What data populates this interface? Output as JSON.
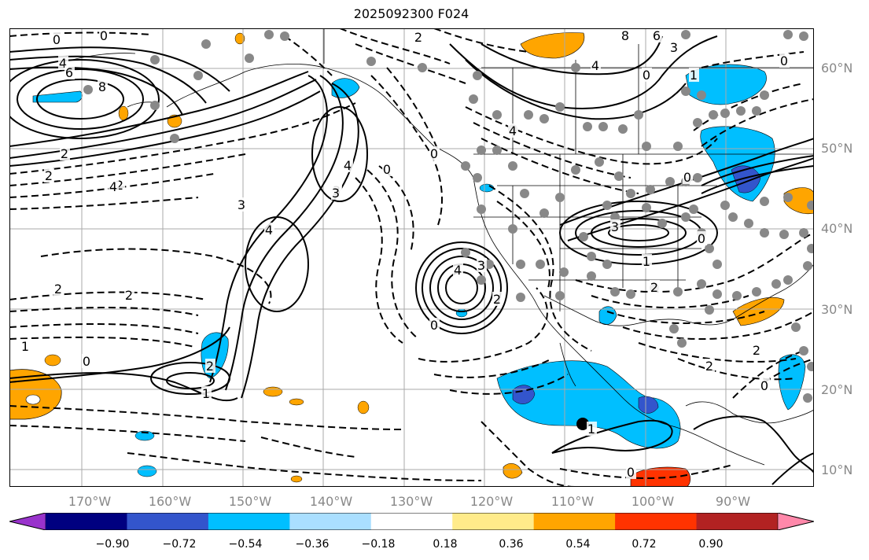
{
  "title": "2025092300 F024",
  "map": {
    "lat_labels": [
      "60°N",
      "50°N",
      "40°N",
      "30°N",
      "20°N",
      "10°N"
    ],
    "lon_labels": [
      "170°W",
      "160°W",
      "150°W",
      "140°W",
      "130°W",
      "120°W",
      "110°W",
      "100°W",
      "90°W"
    ],
    "grid_color": "#aaaaaa"
  },
  "contour_labels": [
    "0",
    "0",
    "4",
    "6",
    "8",
    "2",
    "2",
    "2",
    "4",
    "4",
    "3",
    "4",
    "0",
    "2",
    "3",
    "3",
    "4",
    "3",
    "0",
    "2",
    "2",
    "1",
    "0",
    "2",
    "1",
    "2",
    "0",
    "8",
    "6",
    "3",
    "4",
    "0",
    "1",
    "0",
    "4",
    "0",
    "3",
    "2",
    "1",
    "0",
    "2",
    "2",
    "1",
    "0",
    "0"
  ],
  "colorbar": {
    "ticks": [
      "−0.90",
      "−0.72",
      "−0.54",
      "−0.36",
      "−0.18",
      "0.18",
      "0.36",
      "0.54",
      "0.72",
      "0.90"
    ],
    "colors": [
      "#9933cc",
      "#000080",
      "#3355cc",
      "#00bfff",
      "#aadfff",
      "#ffffff",
      "#ffeb8a",
      "#ffa500",
      "#ff3300",
      "#b22222",
      "#ff88aa"
    ]
  }
}
